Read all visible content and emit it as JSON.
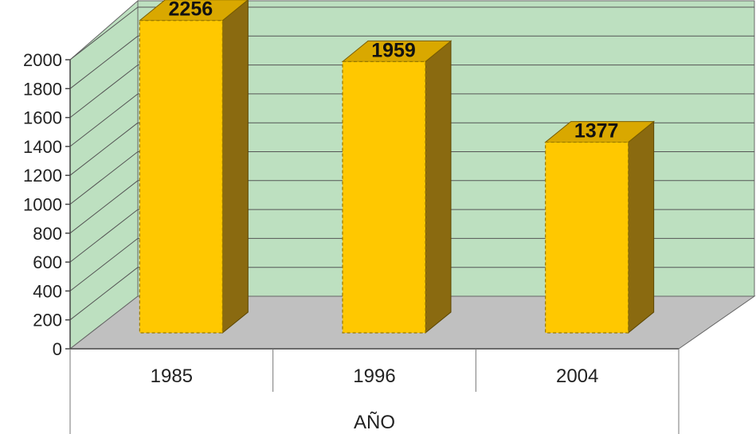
{
  "chart_data": {
    "type": "bar",
    "title": "",
    "xlabel": "AÑO",
    "ylabel": "",
    "categories": [
      "1985",
      "1996",
      "2004"
    ],
    "values": [
      2256,
      1959,
      1377
    ],
    "data_labels": [
      "2256",
      "1959",
      "1377"
    ],
    "ylim": [
      0,
      2000
    ],
    "yticks": [
      "0",
      "200",
      "400",
      "600",
      "800",
      "1000",
      "1200",
      "1400",
      "1600",
      "1800",
      "2000"
    ],
    "grid": true,
    "three_d": true,
    "legend": "none"
  },
  "colors": {
    "bar_front": "#ffc800",
    "bar_top": "#d9a800",
    "bar_side": "#8a6a10",
    "wall": "#bde0c0",
    "floor": "#c0c0c0",
    "grid": "#555555"
  }
}
